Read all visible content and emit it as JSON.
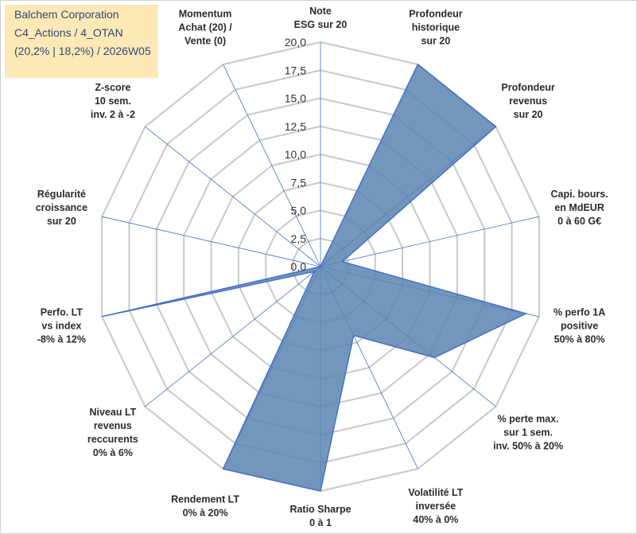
{
  "legend": {
    "line1": "Balchem Corporation",
    "line2": "C4_Actions / 4_OTAN",
    "line3": "(20,2% | 18,2%) / 2026W05"
  },
  "colors": {
    "fill": "#5b84b1",
    "stroke": "#4472c4",
    "grid": "#c8c8c8",
    "spoke": "#4472c4",
    "legend_bg": "#fde9b5",
    "legend_text": "#2f4a7a"
  },
  "chart_data": {
    "type": "radar",
    "title": "",
    "rmin": 0,
    "rmax": 20,
    "rstep": 2.5,
    "tick_labels": [
      "0,0",
      "2,5",
      "5,0",
      "7,5",
      "10,0",
      "12,5",
      "15,0",
      "17,5",
      "20,0"
    ],
    "axes": [
      {
        "label": [
          "Note",
          "ESG sur 20"
        ]
      },
      {
        "label": [
          "Profondeur",
          "historique",
          "sur 20"
        ]
      },
      {
        "label": [
          "Profondeur",
          "revenus",
          "sur 20"
        ]
      },
      {
        "label": [
          "Capi. bours.",
          "en MdEUR",
          "0 à 60 G€"
        ]
      },
      {
        "label": [
          "% perfo 1A",
          "positive",
          "50% à 80%"
        ]
      },
      {
        "label": [
          "% perte max.",
          "sur 1 sem.",
          "inv. 50% à 20%"
        ]
      },
      {
        "label": [
          "Volatilité LT",
          "inversée",
          "40% à 0%"
        ]
      },
      {
        "label": [
          "Ratio Sharpe",
          "0 à 1"
        ]
      },
      {
        "label": [
          "Rendement LT",
          "0% à 20%"
        ]
      },
      {
        "label": [
          "Niveau LT",
          "revenus",
          "reccurents",
          "0% à 6%"
        ]
      },
      {
        "label": [
          "Perfo. LT",
          "vs index",
          "-8% à 12%"
        ]
      },
      {
        "label": [
          "Régularité",
          "croissance",
          "sur 20"
        ]
      },
      {
        "label": [
          "Z-score",
          "10 sem.",
          "inv. 2 à -2"
        ]
      },
      {
        "label": [
          "Momentum",
          "Achat (20) /",
          "Vente (0)"
        ]
      }
    ],
    "series": [
      {
        "name": "Balchem Corporation",
        "values": [
          0,
          20,
          20,
          2.0,
          18.8,
          13.0,
          6.8,
          20,
          20,
          0.7,
          20,
          0,
          0,
          0
        ]
      }
    ]
  }
}
